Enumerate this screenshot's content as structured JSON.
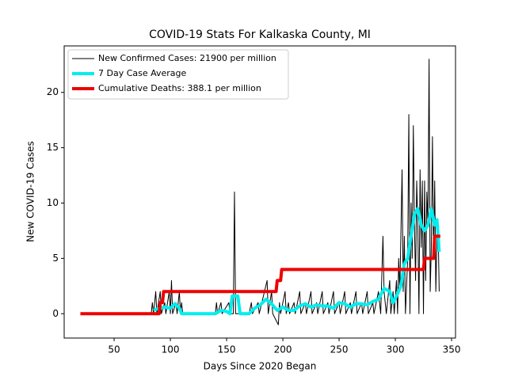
{
  "chart_data": {
    "type": "line",
    "title": "COVID-19 Stats For Kalkaska County, MI",
    "xlabel": "Days Since 2020 Began",
    "ylabel": "New COVID-19 Cases",
    "xlim": [
      5.6,
      353.5
    ],
    "ylim": [
      -2.2,
      24.2
    ],
    "xticks": [
      50,
      100,
      150,
      200,
      250,
      300,
      350
    ],
    "yticks": [
      0,
      5,
      10,
      15,
      20
    ],
    "legend": "upper left",
    "series": [
      {
        "name": "New Confirmed Cases: 21900 per million",
        "color": "#000000",
        "linewidth": 1,
        "x": [
          83,
          84,
          85,
          87,
          88,
          91,
          92,
          95,
          96,
          99,
          100,
          101,
          102,
          105,
          106,
          108,
          109,
          110,
          111,
          140,
          141,
          142,
          145,
          146,
          152,
          153,
          156,
          157,
          158,
          160,
          170,
          172,
          173,
          178,
          179,
          186,
          187,
          190,
          191,
          196,
          197,
          198,
          202,
          203,
          205,
          206,
          210,
          211,
          215,
          216,
          220,
          221,
          225,
          226,
          230,
          231,
          235,
          236,
          240,
          241,
          245,
          246,
          250,
          251,
          255,
          256,
          260,
          261,
          265,
          266,
          270,
          271,
          275,
          276,
          280,
          281,
          285,
          287,
          289,
          290,
          292,
          295,
          296,
          298,
          299,
          301,
          302,
          303,
          304,
          306,
          307,
          308,
          309,
          311,
          312,
          313,
          314,
          315,
          316,
          317,
          318,
          319,
          320,
          321,
          322,
          323,
          324,
          325,
          326,
          327,
          328,
          329,
          330,
          331,
          332,
          333,
          334,
          335,
          336,
          337,
          338,
          339
        ],
        "values": [
          0,
          1,
          0,
          2,
          0,
          2,
          0,
          1,
          0,
          2,
          0,
          3,
          0,
          1,
          0,
          2,
          0,
          1,
          0,
          0,
          1,
          0,
          1,
          0,
          1,
          0,
          0,
          11,
          0,
          0,
          0,
          1,
          0,
          1,
          0,
          3,
          0,
          2,
          0,
          -1,
          1,
          0,
          2,
          0,
          1,
          0,
          1,
          0,
          2,
          0,
          1,
          0,
          2,
          0,
          1,
          0,
          2,
          0,
          1,
          0,
          2,
          0,
          1,
          0,
          2,
          0,
          1,
          0,
          2,
          0,
          1,
          0,
          2,
          0,
          1,
          0,
          2,
          0,
          7,
          2,
          0,
          3,
          0,
          2,
          0,
          3,
          0,
          5,
          2,
          13,
          2,
          7,
          0,
          5,
          18,
          0,
          10,
          5,
          17,
          8,
          3,
          12,
          8,
          0,
          13,
          6,
          12,
          0,
          12,
          3,
          11,
          8,
          23,
          2,
          6,
          16,
          5,
          12,
          2,
          7,
          8,
          2
        ]
      },
      {
        "name": "7 Day Case Average",
        "color": "#00eeee",
        "linewidth": 4,
        "x": [
          85,
          90,
          95,
          100,
          104,
          108,
          110,
          140,
          145,
          150,
          153,
          155,
          160,
          162,
          170,
          175,
          180,
          185,
          190,
          195,
          200,
          205,
          210,
          215,
          220,
          225,
          230,
          235,
          240,
          245,
          250,
          255,
          260,
          265,
          270,
          275,
          280,
          285,
          290,
          295,
          298,
          302,
          305,
          308,
          311,
          314,
          317,
          320,
          323,
          326,
          329,
          332,
          335,
          337,
          339
        ],
        "values": [
          0.3,
          0.5,
          0.6,
          0.5,
          0.9,
          0.5,
          0,
          0,
          0.3,
          0.2,
          0,
          1.6,
          1.6,
          0,
          0,
          0.5,
          0.8,
          1.3,
          0.9,
          0.3,
          0.6,
          0.3,
          0.3,
          0.7,
          0.9,
          0.6,
          0.8,
          0.7,
          0.7,
          0.5,
          1.0,
          0.9,
          0.6,
          0.9,
          0.9,
          0.8,
          1.1,
          1.3,
          2.3,
          2,
          1,
          1.8,
          2.5,
          4.5,
          5,
          7,
          9,
          9.5,
          8,
          7.5,
          8,
          9.5,
          8,
          8.5,
          5.6
        ]
      },
      {
        "name": "Cumulative Deaths: 388.1 per million",
        "color": "#ee0000",
        "linewidth": 4,
        "x": [
          20,
          90,
          91,
          93,
          94,
          194,
          195,
          198,
          199,
          325,
          326,
          334,
          335,
          340
        ],
        "values": [
          0,
          0,
          1,
          1,
          2,
          2,
          3,
          3,
          4,
          4,
          5,
          5,
          7,
          7
        ]
      }
    ]
  }
}
